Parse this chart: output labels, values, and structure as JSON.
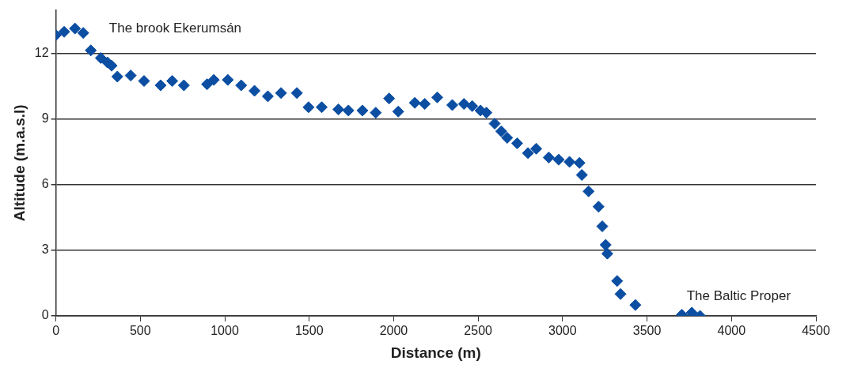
{
  "chart_data": {
    "type": "scatter",
    "xlabel": "Distance (m)",
    "ylabel": "Altitude (m.a.s.l)",
    "xlim": [
      0,
      4500
    ],
    "xticks": [
      0,
      500,
      1000,
      1500,
      2000,
      2500,
      3000,
      3500,
      4000,
      4500
    ],
    "ylim": [
      0,
      14
    ],
    "yticks": [
      0,
      3,
      6,
      9,
      12
    ],
    "grid": "y",
    "legend": false,
    "marker": "diamond",
    "annotations": [
      "The brook Ekerumsán",
      "The Baltic Proper"
    ],
    "series": [
      {
        "color": "#0b4ea2",
        "x": [
          0,
          49,
          113,
          162,
          207,
          266,
          305,
          330,
          364,
          443,
          522,
          620,
          689,
          758,
          895,
          935,
          1018,
          1097,
          1176,
          1255,
          1333,
          1427,
          1496,
          1574,
          1673,
          1732,
          1815,
          1894,
          1973,
          2027,
          2125,
          2184,
          2258,
          2347,
          2416,
          2465,
          2514,
          2549,
          2598,
          2637,
          2672,
          2731,
          2795,
          2844,
          2918,
          2977,
          3041,
          3100,
          3114,
          3154,
          3213,
          3235,
          3255,
          3265,
          3323,
          3343,
          3431,
          3706,
          3765,
          3814
        ],
        "values": [
          12.85,
          13.0,
          13.15,
          12.95,
          12.15,
          11.8,
          11.6,
          11.45,
          10.95,
          11.0,
          10.75,
          10.55,
          10.75,
          10.55,
          10.6,
          10.8,
          10.8,
          10.55,
          10.3,
          10.05,
          10.2,
          10.2,
          9.55,
          9.55,
          9.45,
          9.4,
          9.4,
          9.3,
          9.95,
          9.35,
          9.75,
          9.7,
          10.0,
          9.65,
          9.7,
          9.6,
          9.4,
          9.3,
          8.8,
          8.45,
          8.15,
          7.9,
          7.45,
          7.65,
          7.25,
          7.15,
          7.05,
          7.0,
          6.45,
          5.7,
          5.0,
          4.1,
          3.25,
          2.85,
          1.6,
          1.0,
          0.5,
          0.05,
          0.15,
          0.0
        ]
      }
    ]
  }
}
